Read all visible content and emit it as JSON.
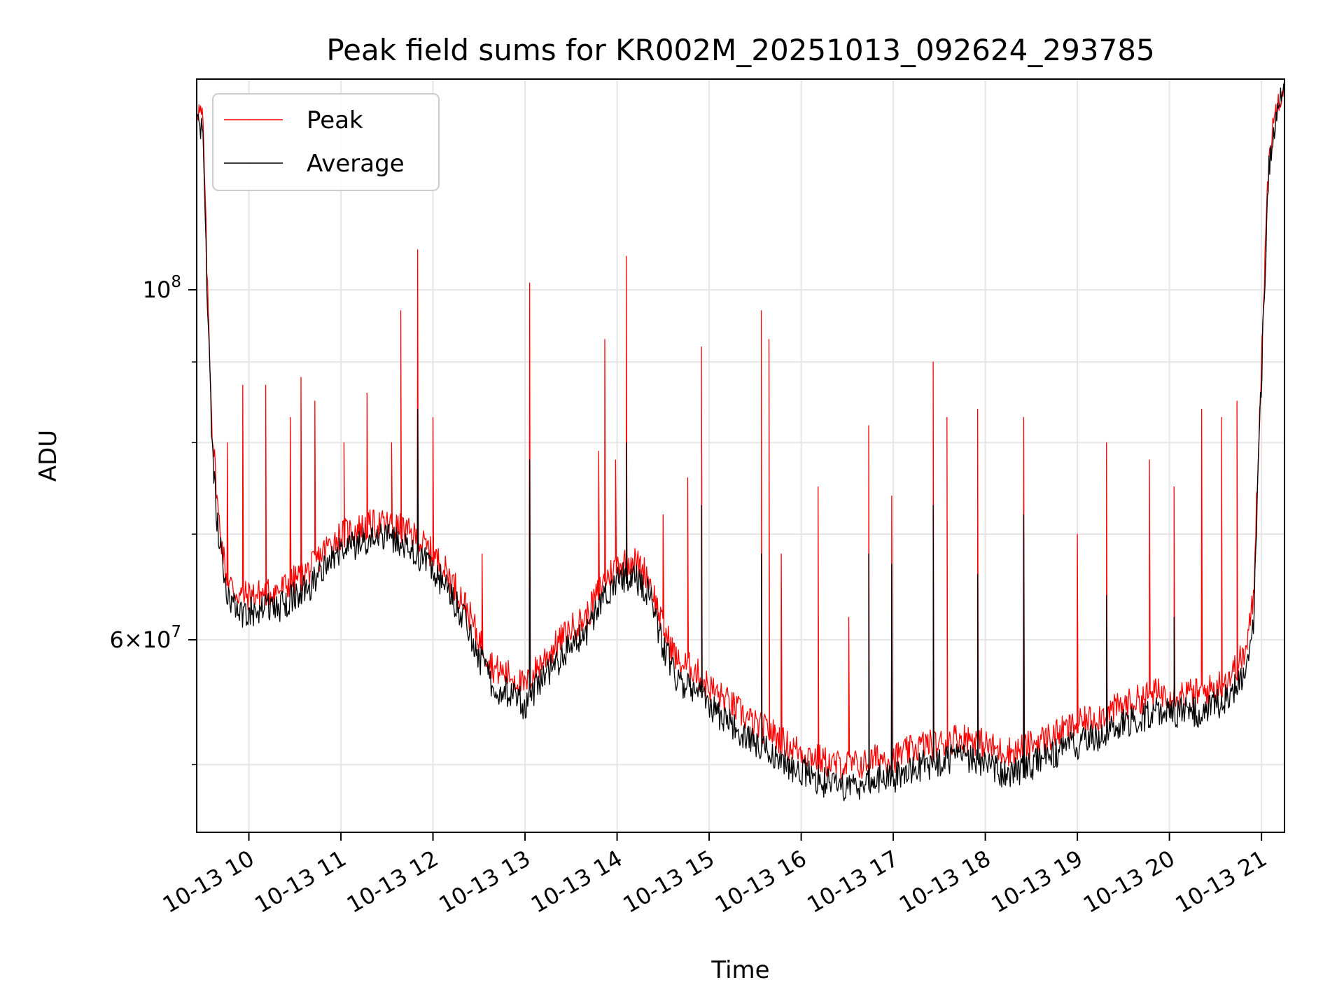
{
  "chart_data": {
    "type": "line",
    "title": "Peak field sums for KR002M_20251013_092624_293785",
    "xlabel": "Time",
    "ylabel": "ADU",
    "y_scale": "log",
    "grid": true,
    "legend_position": "top-left",
    "x_range": [
      "2025-10-13 09:26",
      "2025-10-13 21:15"
    ],
    "ylim": [
      45300000,
      136000000
    ],
    "x_ticks": [
      "10-13 10",
      "10-13 11",
      "10-13 12",
      "10-13 13",
      "10-13 14",
      "10-13 15",
      "10-13 16",
      "10-13 17",
      "10-13 18",
      "10-13 19",
      "10-13 20",
      "10-13 21"
    ],
    "y_tick_labels": [
      {
        "value": 100000000,
        "mantissa": "",
        "base": "10",
        "exponent": "8"
      },
      {
        "value": 60000000,
        "mantissa": "6",
        "base": "10",
        "exponent": "7"
      }
    ],
    "y_minor_ticks": [
      50000000,
      60000000,
      70000000,
      80000000,
      90000000
    ],
    "series": [
      {
        "name": "Peak",
        "color": "#ff0000",
        "x": [
          "2025-10-13 09:26",
          "2025-10-13 09:30",
          "2025-10-13 09:33",
          "2025-10-13 09:36",
          "2025-10-13 09:40",
          "2025-10-13 09:45",
          "2025-10-13 09:50",
          "2025-10-13 09:55",
          "2025-10-13 10:00",
          "2025-10-13 10:10",
          "2025-10-13 10:20",
          "2025-10-13 10:30",
          "2025-10-13 10:40",
          "2025-10-13 10:50",
          "2025-10-13 11:00",
          "2025-10-13 11:10",
          "2025-10-13 11:20",
          "2025-10-13 11:30",
          "2025-10-13 11:40",
          "2025-10-13 11:50",
          "2025-10-13 12:00",
          "2025-10-13 12:10",
          "2025-10-13 12:20",
          "2025-10-13 12:30",
          "2025-10-13 12:40",
          "2025-10-13 12:50",
          "2025-10-13 13:00",
          "2025-10-13 13:10",
          "2025-10-13 13:20",
          "2025-10-13 13:30",
          "2025-10-13 13:40",
          "2025-10-13 13:50",
          "2025-10-13 14:00",
          "2025-10-13 14:10",
          "2025-10-13 14:20",
          "2025-10-13 14:30",
          "2025-10-13 14:40",
          "2025-10-13 14:50",
          "2025-10-13 15:00",
          "2025-10-13 15:10",
          "2025-10-13 15:20",
          "2025-10-13 15:30",
          "2025-10-13 15:40",
          "2025-10-13 15:50",
          "2025-10-13 16:00",
          "2025-10-13 16:10",
          "2025-10-13 16:20",
          "2025-10-13 16:30",
          "2025-10-13 16:40",
          "2025-10-13 16:50",
          "2025-10-13 17:00",
          "2025-10-13 17:10",
          "2025-10-13 17:20",
          "2025-10-13 17:30",
          "2025-10-13 17:40",
          "2025-10-13 17:50",
          "2025-10-13 18:00",
          "2025-10-13 18:10",
          "2025-10-13 18:20",
          "2025-10-13 18:30",
          "2025-10-13 18:40",
          "2025-10-13 18:50",
          "2025-10-13 19:00",
          "2025-10-13 19:10",
          "2025-10-13 19:20",
          "2025-10-13 19:30",
          "2025-10-13 19:40",
          "2025-10-13 19:50",
          "2025-10-13 20:00",
          "2025-10-13 20:10",
          "2025-10-13 20:20",
          "2025-10-13 20:30",
          "2025-10-13 20:40",
          "2025-10-13 20:50",
          "2025-10-13 20:55",
          "2025-10-13 21:00",
          "2025-10-13 21:05",
          "2025-10-13 21:10",
          "2025-10-13 21:15"
        ],
        "y": [
          131000000,
          128000000,
          100000000,
          82000000,
          72000000,
          66000000,
          64500000,
          64000000,
          64000000,
          64200000,
          64500000,
          65500000,
          66500000,
          68500000,
          70000000,
          70500000,
          71000000,
          71000000,
          70500000,
          69500000,
          68000000,
          66000000,
          63500000,
          60000000,
          57500000,
          57000000,
          56000000,
          58000000,
          59500000,
          61000000,
          62000000,
          65000000,
          67000000,
          67500000,
          66000000,
          61000000,
          58000000,
          57500000,
          56000000,
          55000000,
          54000000,
          53000000,
          52500000,
          51500000,
          51000000,
          50500000,
          50000000,
          50000000,
          50000000,
          50500000,
          50500000,
          51000000,
          51500000,
          51500000,
          52000000,
          52000000,
          51500000,
          51000000,
          51000000,
          51500000,
          52000000,
          52500000,
          53000000,
          53500000,
          54000000,
          54500000,
          55000000,
          55500000,
          55500000,
          55500000,
          55500000,
          56000000,
          57000000,
          59000000,
          64000000,
          90000000,
          122000000,
          131000000,
          136000000
        ],
        "spikes": [
          [
            "2025-10-13 09:46",
            80000000
          ],
          [
            "2025-10-13 09:56",
            87000000
          ],
          [
            "2025-10-13 10:11",
            87000000
          ],
          [
            "2025-10-13 10:27",
            83000000
          ],
          [
            "2025-10-13 10:34",
            88000000
          ],
          [
            "2025-10-13 10:43",
            85000000
          ],
          [
            "2025-10-13 11:02",
            80000000
          ],
          [
            "2025-10-13 11:17",
            86000000
          ],
          [
            "2025-10-13 11:33",
            80000000
          ],
          [
            "2025-10-13 11:39",
            97000000
          ],
          [
            "2025-10-13 11:50",
            106000000
          ],
          [
            "2025-10-13 12:00",
            83000000
          ],
          [
            "2025-10-13 12:32",
            68000000
          ],
          [
            "2025-10-13 13:03",
            101000000
          ],
          [
            "2025-10-13 13:48",
            79000000
          ],
          [
            "2025-10-13 13:52",
            93000000
          ],
          [
            "2025-10-13 13:59",
            78000000
          ],
          [
            "2025-10-13 14:06",
            105000000
          ],
          [
            "2025-10-13 14:30",
            72000000
          ],
          [
            "2025-10-13 14:46",
            76000000
          ],
          [
            "2025-10-13 14:55",
            92000000
          ],
          [
            "2025-10-13 15:34",
            97000000
          ],
          [
            "2025-10-13 15:39",
            93000000
          ],
          [
            "2025-10-13 15:47",
            68000000
          ],
          [
            "2025-10-13 16:11",
            75000000
          ],
          [
            "2025-10-13 16:31",
            62000000
          ],
          [
            "2025-10-13 16:44",
            82000000
          ],
          [
            "2025-10-13 16:59",
            74000000
          ],
          [
            "2025-10-13 17:26",
            90000000
          ],
          [
            "2025-10-13 17:35",
            83000000
          ],
          [
            "2025-10-13 17:55",
            84000000
          ],
          [
            "2025-10-13 18:25",
            83000000
          ],
          [
            "2025-10-13 19:00",
            70000000
          ],
          [
            "2025-10-13 19:19",
            80000000
          ],
          [
            "2025-10-13 19:47",
            78000000
          ],
          [
            "2025-10-13 20:03",
            75000000
          ],
          [
            "2025-10-13 20:21",
            84000000
          ],
          [
            "2025-10-13 20:34",
            83000000
          ],
          [
            "2025-10-13 20:44",
            85000000
          ]
        ]
      },
      {
        "name": "Average",
        "color": "#000000",
        "x": [
          "2025-10-13 09:26",
          "2025-10-13 09:30",
          "2025-10-13 09:33",
          "2025-10-13 09:36",
          "2025-10-13 09:40",
          "2025-10-13 09:45",
          "2025-10-13 09:50",
          "2025-10-13 09:55",
          "2025-10-13 10:00",
          "2025-10-13 10:10",
          "2025-10-13 10:20",
          "2025-10-13 10:30",
          "2025-10-13 10:40",
          "2025-10-13 10:50",
          "2025-10-13 11:00",
          "2025-10-13 11:10",
          "2025-10-13 11:20",
          "2025-10-13 11:30",
          "2025-10-13 11:40",
          "2025-10-13 11:50",
          "2025-10-13 12:00",
          "2025-10-13 12:10",
          "2025-10-13 12:20",
          "2025-10-13 12:30",
          "2025-10-13 12:40",
          "2025-10-13 12:50",
          "2025-10-13 13:00",
          "2025-10-13 13:10",
          "2025-10-13 13:20",
          "2025-10-13 13:30",
          "2025-10-13 13:40",
          "2025-10-13 13:50",
          "2025-10-13 14:00",
          "2025-10-13 14:10",
          "2025-10-13 14:20",
          "2025-10-13 14:30",
          "2025-10-13 14:40",
          "2025-10-13 14:50",
          "2025-10-13 15:00",
          "2025-10-13 15:10",
          "2025-10-13 15:20",
          "2025-10-13 15:30",
          "2025-10-13 15:40",
          "2025-10-13 15:50",
          "2025-10-13 16:00",
          "2025-10-13 16:10",
          "2025-10-13 16:20",
          "2025-10-13 16:30",
          "2025-10-13 16:40",
          "2025-10-13 16:50",
          "2025-10-13 17:00",
          "2025-10-13 17:10",
          "2025-10-13 17:20",
          "2025-10-13 17:30",
          "2025-10-13 17:40",
          "2025-10-13 17:50",
          "2025-10-13 18:00",
          "2025-10-13 18:10",
          "2025-10-13 18:20",
          "2025-10-13 18:30",
          "2025-10-13 18:40",
          "2025-10-13 18:50",
          "2025-10-13 19:00",
          "2025-10-13 19:10",
          "2025-10-13 19:20",
          "2025-10-13 19:30",
          "2025-10-13 19:40",
          "2025-10-13 19:50",
          "2025-10-13 20:00",
          "2025-10-13 20:10",
          "2025-10-13 20:20",
          "2025-10-13 20:30",
          "2025-10-13 20:40",
          "2025-10-13 20:50",
          "2025-10-13 20:55",
          "2025-10-13 21:00",
          "2025-10-13 21:05",
          "2025-10-13 21:10",
          "2025-10-13 21:15"
        ],
        "y": [
          128000000,
          125000000,
          98000000,
          79000000,
          70000000,
          64500000,
          63000000,
          62500000,
          62500000,
          62800000,
          63000000,
          64000000,
          65000000,
          67000000,
          68500000,
          69000000,
          69500000,
          69500000,
          69000000,
          68000000,
          66500000,
          64500000,
          62000000,
          58500000,
          56000000,
          55500000,
          54500000,
          56500000,
          58000000,
          59500000,
          60500000,
          63500000,
          65500000,
          66000000,
          64500000,
          59500000,
          56500000,
          56000000,
          54500000,
          53500000,
          52500000,
          51500000,
          51000000,
          50000000,
          49500000,
          49000000,
          48500000,
          48500000,
          48500000,
          49000000,
          49000000,
          49500000,
          50000000,
          50000000,
          50500000,
          50500000,
          50000000,
          49500000,
          49500000,
          50000000,
          50500000,
          51000000,
          51500000,
          52000000,
          52500000,
          53000000,
          53500000,
          54000000,
          54000000,
          54000000,
          54000000,
          54500000,
          55500000,
          57500000,
          62000000,
          88000000,
          120000000,
          129000000,
          134000000
        ],
        "spikes": [
          [
            "2025-10-13 11:50",
            84000000
          ],
          [
            "2025-10-13 13:03",
            78000000
          ],
          [
            "2025-10-13 14:06",
            80000000
          ],
          [
            "2025-10-13 14:55",
            73000000
          ],
          [
            "2025-10-13 15:34",
            68000000
          ],
          [
            "2025-10-13 16:44",
            68000000
          ],
          [
            "2025-10-13 16:59",
            67000000
          ],
          [
            "2025-10-13 17:26",
            73000000
          ],
          [
            "2025-10-13 17:55",
            66000000
          ],
          [
            "2025-10-13 18:25",
            72000000
          ],
          [
            "2025-10-13 19:19",
            64000000
          ],
          [
            "2025-10-13 20:03",
            62000000
          ]
        ]
      }
    ]
  }
}
